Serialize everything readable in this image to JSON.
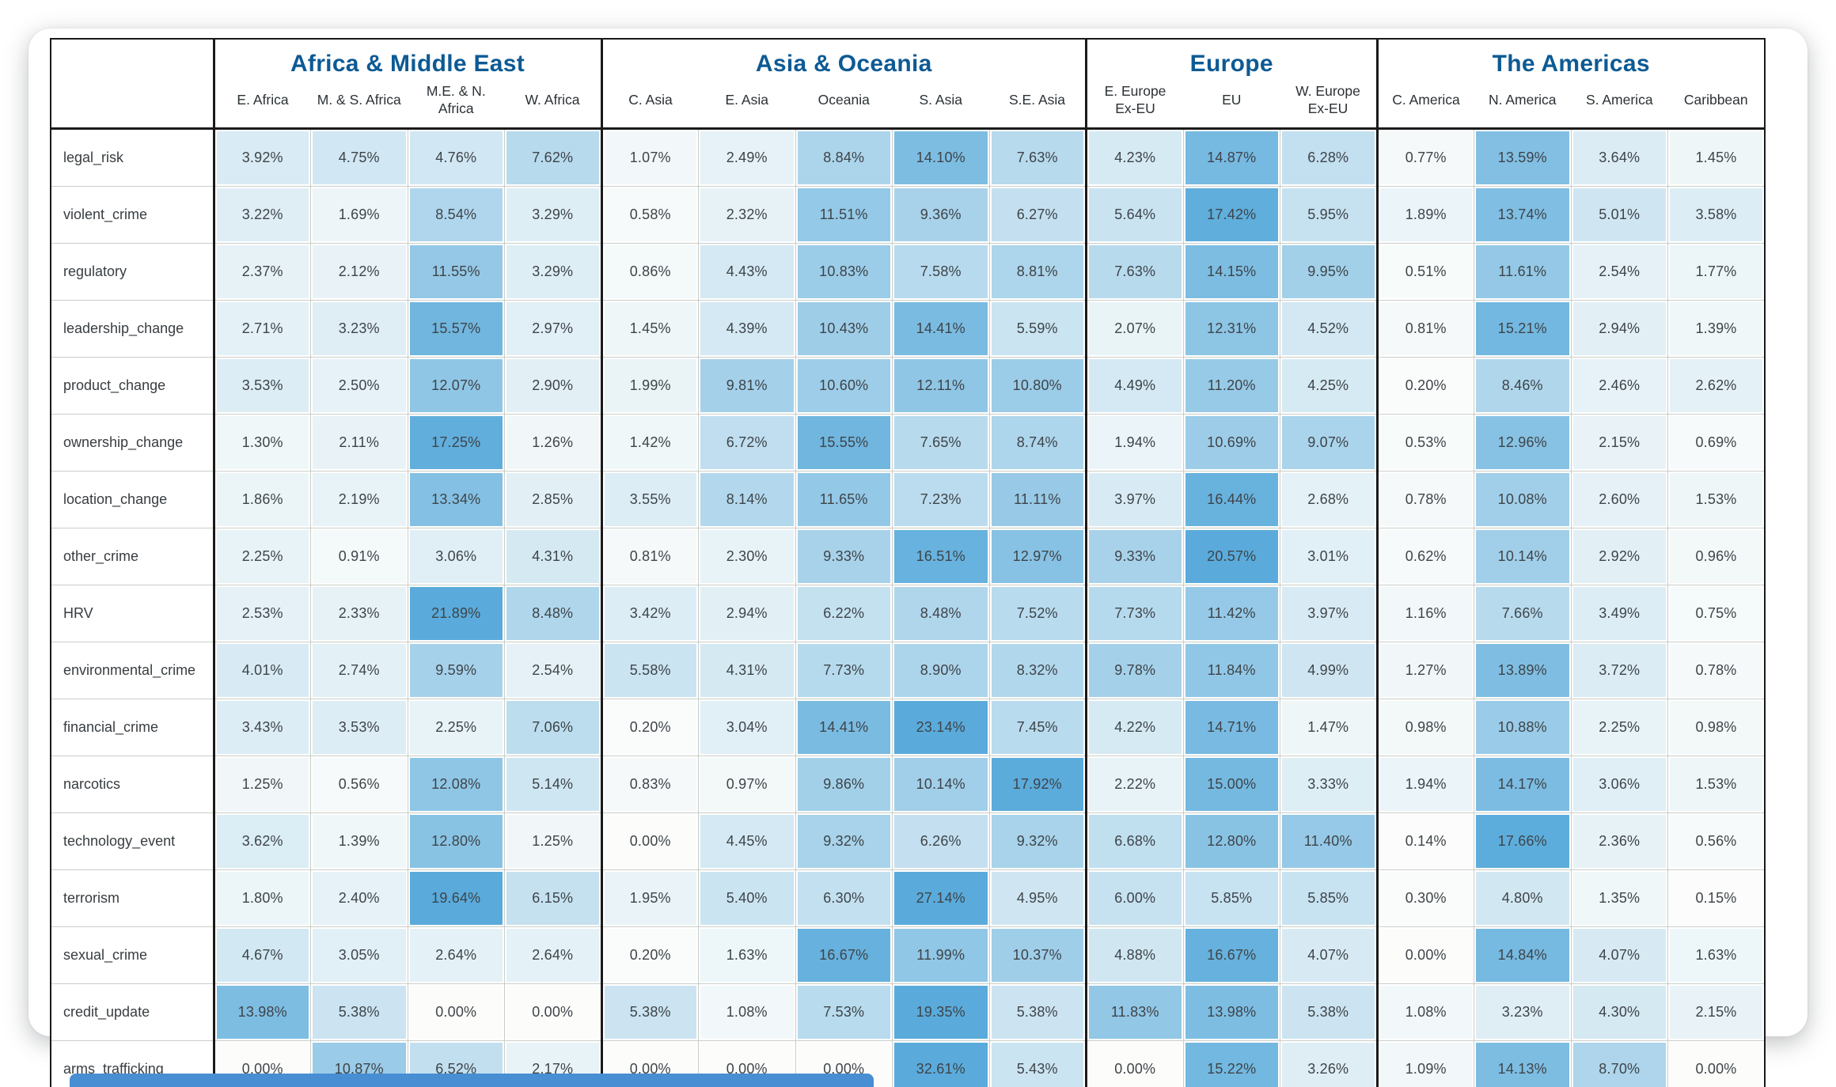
{
  "chart_data": {
    "type": "heatmap",
    "title": "",
    "column_groups": [
      {
        "label": "Africa & Middle East",
        "columns": [
          "E. Africa",
          "M. & S. Africa",
          "M.E. & N. Africa",
          "W. Africa"
        ]
      },
      {
        "label": "Asia & Oceania",
        "columns": [
          "C. Asia",
          "E. Asia",
          "Oceania",
          "S. Asia",
          "S.E. Asia"
        ]
      },
      {
        "label": "Europe",
        "columns": [
          "E. Europe Ex-EU",
          "EU",
          "W. Europe Ex-EU"
        ]
      },
      {
        "label": "The Americas",
        "columns": [
          "C. America",
          "N. America",
          "S. America",
          "Caribbean"
        ]
      }
    ],
    "rows": [
      "legal_risk",
      "violent_crime",
      "regulatory",
      "leadership_change",
      "product_change",
      "ownership_change",
      "location_change",
      "other_crime",
      "HRV",
      "environmental_crime",
      "financial_crime",
      "narcotics",
      "technology_event",
      "terrorism",
      "sexual_crime",
      "credit_update",
      "arms_trafficking"
    ],
    "values": [
      [
        "3.92%",
        "4.75%",
        "4.76%",
        "7.62%",
        "1.07%",
        "2.49%",
        "8.84%",
        "14.10%",
        "7.63%",
        "4.23%",
        "14.87%",
        "6.28%",
        "0.77%",
        "13.59%",
        "3.64%",
        "1.45%"
      ],
      [
        "3.22%",
        "1.69%",
        "8.54%",
        "3.29%",
        "0.58%",
        "2.32%",
        "11.51%",
        "9.36%",
        "6.27%",
        "5.64%",
        "17.42%",
        "5.95%",
        "1.89%",
        "13.74%",
        "5.01%",
        "3.58%"
      ],
      [
        "2.37%",
        "2.12%",
        "11.55%",
        "3.29%",
        "0.86%",
        "4.43%",
        "10.83%",
        "7.58%",
        "8.81%",
        "7.63%",
        "14.15%",
        "9.95%",
        "0.51%",
        "11.61%",
        "2.54%",
        "1.77%"
      ],
      [
        "2.71%",
        "3.23%",
        "15.57%",
        "2.97%",
        "1.45%",
        "4.39%",
        "10.43%",
        "14.41%",
        "5.59%",
        "2.07%",
        "12.31%",
        "4.52%",
        "0.81%",
        "15.21%",
        "2.94%",
        "1.39%"
      ],
      [
        "3.53%",
        "2.50%",
        "12.07%",
        "2.90%",
        "1.99%",
        "9.81%",
        "10.60%",
        "12.11%",
        "10.80%",
        "4.49%",
        "11.20%",
        "4.25%",
        "0.20%",
        "8.46%",
        "2.46%",
        "2.62%"
      ],
      [
        "1.30%",
        "2.11%",
        "17.25%",
        "1.26%",
        "1.42%",
        "6.72%",
        "15.55%",
        "7.65%",
        "8.74%",
        "1.94%",
        "10.69%",
        "9.07%",
        "0.53%",
        "12.96%",
        "2.15%",
        "0.69%"
      ],
      [
        "1.86%",
        "2.19%",
        "13.34%",
        "2.85%",
        "3.55%",
        "8.14%",
        "11.65%",
        "7.23%",
        "11.11%",
        "3.97%",
        "16.44%",
        "2.68%",
        "0.78%",
        "10.08%",
        "2.60%",
        "1.53%"
      ],
      [
        "2.25%",
        "0.91%",
        "3.06%",
        "4.31%",
        "0.81%",
        "2.30%",
        "9.33%",
        "16.51%",
        "12.97%",
        "9.33%",
        "20.57%",
        "3.01%",
        "0.62%",
        "10.14%",
        "2.92%",
        "0.96%"
      ],
      [
        "2.53%",
        "2.33%",
        "21.89%",
        "8.48%",
        "3.42%",
        "2.94%",
        "6.22%",
        "8.48%",
        "7.52%",
        "7.73%",
        "11.42%",
        "3.97%",
        "1.16%",
        "7.66%",
        "3.49%",
        "0.75%"
      ],
      [
        "4.01%",
        "2.74%",
        "9.59%",
        "2.54%",
        "5.58%",
        "4.31%",
        "7.73%",
        "8.90%",
        "8.32%",
        "9.78%",
        "11.84%",
        "4.99%",
        "1.27%",
        "13.89%",
        "3.72%",
        "0.78%"
      ],
      [
        "3.43%",
        "3.53%",
        "2.25%",
        "7.06%",
        "0.20%",
        "3.04%",
        "14.41%",
        "23.14%",
        "7.45%",
        "4.22%",
        "14.71%",
        "1.47%",
        "0.98%",
        "10.88%",
        "2.25%",
        "0.98%"
      ],
      [
        "1.25%",
        "0.56%",
        "12.08%",
        "5.14%",
        "0.83%",
        "0.97%",
        "9.86%",
        "10.14%",
        "17.92%",
        "2.22%",
        "15.00%",
        "3.33%",
        "1.94%",
        "14.17%",
        "3.06%",
        "1.53%"
      ],
      [
        "3.62%",
        "1.39%",
        "12.80%",
        "1.25%",
        "0.00%",
        "4.45%",
        "9.32%",
        "6.26%",
        "9.32%",
        "6.68%",
        "12.80%",
        "11.40%",
        "0.14%",
        "17.66%",
        "2.36%",
        "0.56%"
      ],
      [
        "1.80%",
        "2.40%",
        "19.64%",
        "6.15%",
        "1.95%",
        "5.40%",
        "6.30%",
        "27.14%",
        "4.95%",
        "6.00%",
        "5.85%",
        "5.85%",
        "0.30%",
        "4.80%",
        "1.35%",
        "0.15%"
      ],
      [
        "4.67%",
        "3.05%",
        "2.64%",
        "2.64%",
        "0.20%",
        "1.63%",
        "16.67%",
        "11.99%",
        "10.37%",
        "4.88%",
        "16.67%",
        "4.07%",
        "0.00%",
        "14.84%",
        "4.07%",
        "1.63%"
      ],
      [
        "13.98%",
        "5.38%",
        "0.00%",
        "0.00%",
        "5.38%",
        "1.08%",
        "7.53%",
        "19.35%",
        "5.38%",
        "11.83%",
        "13.98%",
        "5.38%",
        "1.08%",
        "3.23%",
        "4.30%",
        "2.15%"
      ],
      [
        "0.00%",
        "10.87%",
        "6.52%",
        "2.17%",
        "0.00%",
        "0.00%",
        "0.00%",
        "32.61%",
        "5.43%",
        "0.00%",
        "15.22%",
        "3.26%",
        "1.09%",
        "14.13%",
        "8.70%",
        "0.00%"
      ]
    ],
    "color_scale": {
      "min_color": "#fcfdfb",
      "max_color": "#5aabdb",
      "max_value": 18,
      "title_color": "#0d5a94",
      "scrollbar_color": "#478ed2"
    },
    "layout": {
      "grid": "on",
      "group_separator": "thick-black-line",
      "legend": "none"
    }
  }
}
